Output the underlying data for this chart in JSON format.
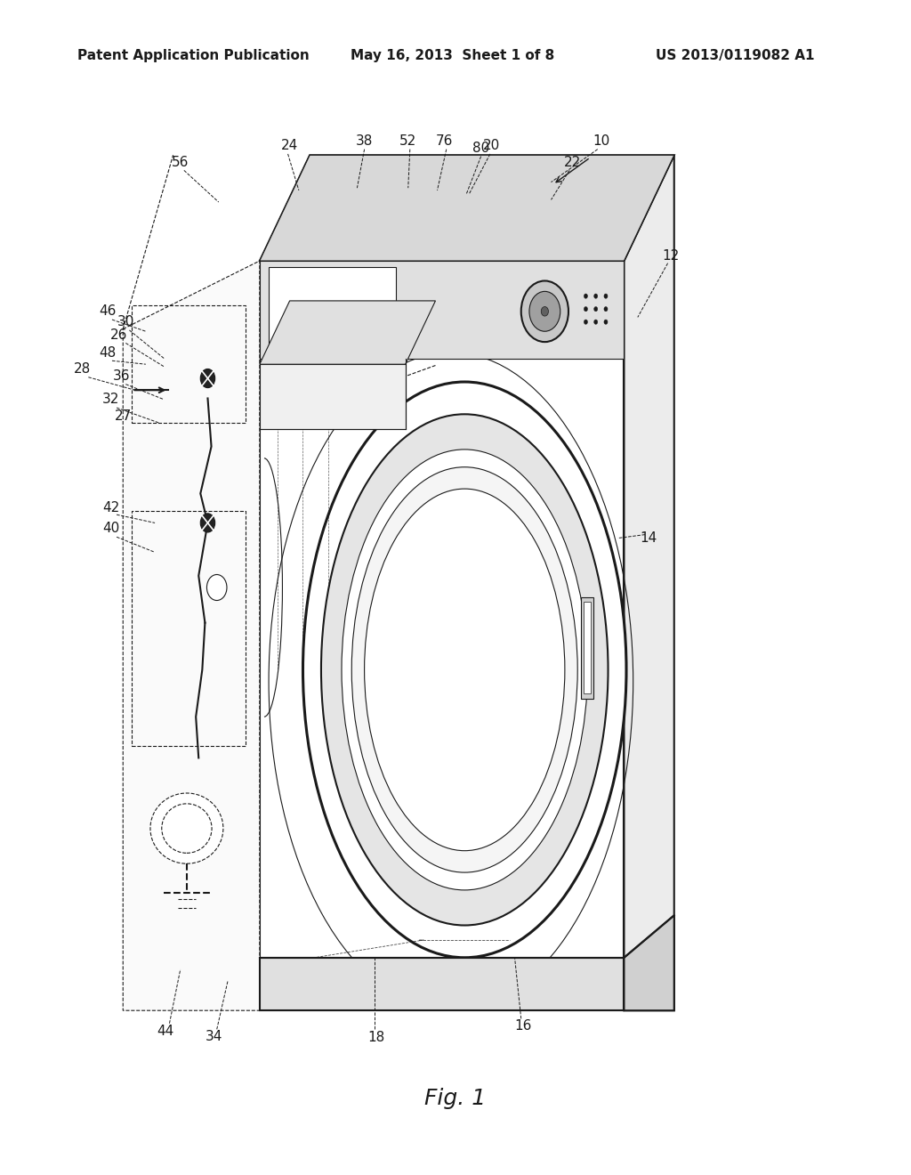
{
  "header_left": "Patent Application Publication",
  "header_mid": "May 16, 2013  Sheet 1 of 8",
  "header_right": "US 2013/0119082 A1",
  "fig_label": "Fig. 1",
  "bg_color": "#ffffff",
  "line_color": "#1a1a1a",
  "text_color": "#1a1a1a",
  "header_fontsize": 11,
  "fig_label_fontsize": 18,
  "ref_fontsize": 11
}
